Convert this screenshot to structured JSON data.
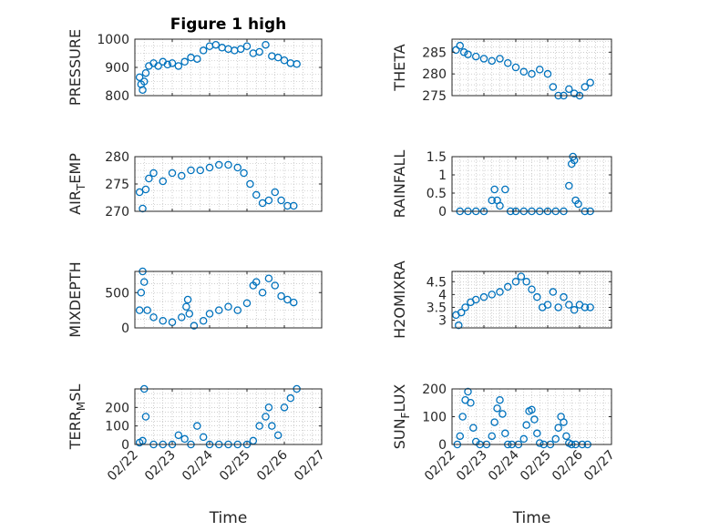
{
  "figure": {
    "background": "#ffffff",
    "marker_color": "#0072bd"
  },
  "chart_data": [
    {
      "type": "scatter",
      "title": "Figure 1 high",
      "ylabel": "PRESSURE",
      "ylabel_sub": "",
      "xlim": [
        "02/22",
        "02/27"
      ],
      "ylim": [
        800,
        1000
      ],
      "yticks": [
        "800",
        "900",
        "1000"
      ],
      "xticks": [],
      "xlabel": "",
      "grid": true,
      "x": [
        "02/22 03:00",
        "02/22 04:00",
        "02/22 05:00",
        "02/22 06:00",
        "02/22 07:00",
        "02/22 09:00",
        "02/22 12:00",
        "02/22 15:00",
        "02/22 18:00",
        "02/22 21:00",
        "02/23 00:00",
        "02/23 04:00",
        "02/23 08:00",
        "02/23 12:00",
        "02/23 16:00",
        "02/23 20:00",
        "02/24 00:00",
        "02/24 04:00",
        "02/24 08:00",
        "02/24 12:00",
        "02/24 16:00",
        "02/24 20:00",
        "02/25 00:00",
        "02/25 04:00",
        "02/25 08:00",
        "02/25 12:00",
        "02/25 16:00",
        "02/25 20:00",
        "02/26 00:00",
        "02/26 04:00",
        "02/26 08:00"
      ],
      "y": [
        865,
        840,
        820,
        850,
        880,
        905,
        915,
        905,
        920,
        910,
        915,
        905,
        920,
        935,
        930,
        960,
        975,
        980,
        970,
        965,
        960,
        965,
        975,
        950,
        955,
        980,
        940,
        935,
        925,
        915,
        912
      ]
    },
    {
      "type": "scatter",
      "title": "",
      "ylabel": "THETA",
      "ylabel_sub": "",
      "xlim": [
        "02/22",
        "02/27"
      ],
      "ylim": [
        275,
        288
      ],
      "yticks": [
        "275",
        "280",
        "285"
      ],
      "xticks": [],
      "xlabel": "",
      "grid": true,
      "x": [
        "02/22 03:00",
        "02/22 06:00",
        "02/22 09:00",
        "02/22 12:00",
        "02/22 18:00",
        "02/23 00:00",
        "02/23 06:00",
        "02/23 12:00",
        "02/23 18:00",
        "02/24 00:00",
        "02/24 06:00",
        "02/24 12:00",
        "02/24 18:00",
        "02/25 00:00",
        "02/25 04:00",
        "02/25 08:00",
        "02/25 12:00",
        "02/25 16:00",
        "02/25 20:00",
        "02/26 00:00",
        "02/26 04:00",
        "02/26 08:00"
      ],
      "y": [
        285.5,
        286.5,
        285.0,
        284.5,
        284.0,
        283.5,
        283.0,
        283.5,
        282.5,
        281.5,
        280.5,
        280.0,
        281.0,
        280.0,
        277.0,
        275.0,
        275.0,
        276.5,
        275.5,
        275.0,
        277.0,
        278.0
      ]
    },
    {
      "type": "scatter",
      "title": "",
      "ylabel": "AIR",
      "ylabel_sub": "T",
      "ylabel_suffix": "EMP",
      "xlim": [
        "02/22",
        "02/27"
      ],
      "ylim": [
        270,
        280
      ],
      "yticks": [
        "270",
        "275",
        "280"
      ],
      "xticks": [],
      "xlabel": "",
      "grid": true,
      "x": [
        "02/22 03:00",
        "02/22 05:00",
        "02/22 07:00",
        "02/22 09:00",
        "02/22 12:00",
        "02/22 18:00",
        "02/23 00:00",
        "02/23 06:00",
        "02/23 12:00",
        "02/23 18:00",
        "02/24 00:00",
        "02/24 06:00",
        "02/24 12:00",
        "02/24 18:00",
        "02/24 22:00",
        "02/25 02:00",
        "02/25 06:00",
        "02/25 10:00",
        "02/25 14:00",
        "02/25 18:00",
        "02/25 22:00",
        "02/26 02:00",
        "02/26 06:00"
      ],
      "y": [
        273.5,
        270.5,
        274.0,
        276.0,
        277.0,
        275.5,
        277.0,
        276.5,
        277.5,
        277.5,
        278.0,
        278.5,
        278.5,
        278.0,
        277.0,
        275.0,
        273.0,
        271.5,
        272.0,
        273.5,
        272.0,
        271.0,
        271.0
      ]
    },
    {
      "type": "scatter",
      "title": "",
      "ylabel": "RAINFALL",
      "ylabel_sub": "",
      "xlim": [
        "02/22",
        "02/27"
      ],
      "ylim": [
        0,
        1.5
      ],
      "yticks": [
        "0",
        "0.5",
        "1",
        "1.5"
      ],
      "xticks": [],
      "xlabel": "",
      "grid": true,
      "x": [
        "02/22 06:00",
        "02/22 12:00",
        "02/22 18:00",
        "02/23 00:00",
        "02/23 06:00",
        "02/23 08:00",
        "02/23 10:00",
        "02/23 12:00",
        "02/23 16:00",
        "02/23 20:00",
        "02/24 00:00",
        "02/24 06:00",
        "02/24 12:00",
        "02/24 18:00",
        "02/25 00:00",
        "02/25 06:00",
        "02/25 12:00",
        "02/25 16:00",
        "02/25 18:00",
        "02/25 19:00",
        "02/25 20:00",
        "02/25 21:00",
        "02/25 23:00",
        "02/26 04:00",
        "02/26 08:00"
      ],
      "y": [
        0,
        0,
        0,
        0,
        0.3,
        0.6,
        0.3,
        0.15,
        0.6,
        0,
        0,
        0,
        0,
        0,
        0,
        0,
        0,
        0.7,
        1.3,
        1.5,
        1.4,
        0.3,
        0.2,
        0,
        0
      ]
    },
    {
      "type": "scatter",
      "title": "",
      "ylabel": "MIXDEPTH",
      "ylabel_sub": "",
      "xlim": [
        "02/22",
        "02/27"
      ],
      "ylim": [
        0,
        800
      ],
      "yticks": [
        "0",
        "500"
      ],
      "xticks": [],
      "xlabel": "",
      "grid": true,
      "x": [
        "02/22 03:00",
        "02/22 04:00",
        "02/22 05:00",
        "02/22 06:00",
        "02/22 08:00",
        "02/22 12:00",
        "02/22 18:00",
        "02/23 00:00",
        "02/23 06:00",
        "02/23 09:00",
        "02/23 10:00",
        "02/23 11:00",
        "02/23 14:00",
        "02/23 20:00",
        "02/24 00:00",
        "02/24 06:00",
        "02/24 12:00",
        "02/24 18:00",
        "02/25 00:00",
        "02/25 04:00",
        "02/25 06:00",
        "02/25 10:00",
        "02/25 14:00",
        "02/25 18:00",
        "02/25 22:00",
        "02/26 02:00",
        "02/26 06:00"
      ],
      "y": [
        250,
        500,
        800,
        650,
        250,
        150,
        100,
        80,
        150,
        300,
        400,
        200,
        30,
        100,
        200,
        250,
        300,
        250,
        350,
        600,
        650,
        500,
        700,
        600,
        450,
        400,
        360
      ]
    },
    {
      "type": "scatter",
      "title": "",
      "ylabel": "H2OMIXRA",
      "ylabel_sub": "",
      "xlim": [
        "02/22",
        "02/27"
      ],
      "ylim": [
        2.7,
        4.9
      ],
      "yticks": [
        "3",
        "3.5",
        "4",
        "4.5"
      ],
      "xticks": [],
      "xlabel": "",
      "grid": true,
      "x": [
        "02/22 03:00",
        "02/22 05:00",
        "02/22 07:00",
        "02/22 10:00",
        "02/22 14:00",
        "02/22 18:00",
        "02/23 00:00",
        "02/23 06:00",
        "02/23 12:00",
        "02/23 18:00",
        "02/24 00:00",
        "02/24 04:00",
        "02/24 08:00",
        "02/24 12:00",
        "02/24 16:00",
        "02/24 20:00",
        "02/25 00:00",
        "02/25 04:00",
        "02/25 08:00",
        "02/25 12:00",
        "02/25 16:00",
        "02/25 20:00",
        "02/26 00:00",
        "02/26 04:00",
        "02/26 08:00"
      ],
      "y": [
        3.2,
        2.8,
        3.3,
        3.5,
        3.7,
        3.8,
        3.9,
        4.0,
        4.1,
        4.3,
        4.5,
        4.7,
        4.5,
        4.2,
        3.9,
        3.5,
        3.6,
        4.1,
        3.5,
        3.9,
        3.6,
        3.4,
        3.6,
        3.5,
        3.5
      ]
    },
    {
      "type": "scatter",
      "title": "",
      "ylabel": "TERR",
      "ylabel_sub": "M",
      "ylabel_suffix": "SL",
      "xlim": [
        "02/22",
        "02/27"
      ],
      "ylim": [
        0,
        300
      ],
      "yticks": [
        "0",
        "100",
        "200"
      ],
      "xticks": [
        "02/22",
        "02/23",
        "02/24",
        "02/25",
        "02/26",
        "02/27"
      ],
      "xlabel": "Time",
      "grid": true,
      "x": [
        "02/22 03:00",
        "02/22 05:00",
        "02/22 06:00",
        "02/22 07:00",
        "02/22 12:00",
        "02/22 18:00",
        "02/23 00:00",
        "02/23 04:00",
        "02/23 08:00",
        "02/23 12:00",
        "02/23 16:00",
        "02/23 20:00",
        "02/24 00:00",
        "02/24 06:00",
        "02/24 12:00",
        "02/24 18:00",
        "02/25 00:00",
        "02/25 04:00",
        "02/25 08:00",
        "02/25 12:00",
        "02/25 14:00",
        "02/25 16:00",
        "02/25 20:00",
        "02/26 00:00",
        "02/26 04:00",
        "02/26 08:00"
      ],
      "y": [
        10,
        20,
        300,
        150,
        0,
        0,
        0,
        50,
        30,
        0,
        100,
        40,
        0,
        0,
        0,
        0,
        0,
        20,
        100,
        150,
        200,
        100,
        50,
        200,
        250,
        300
      ]
    },
    {
      "type": "scatter",
      "title": "",
      "ylabel": "SUN",
      "ylabel_sub": "F",
      "ylabel_suffix": "LUX",
      "xlim": [
        "02/22",
        "02/27"
      ],
      "ylim": [
        0,
        200
      ],
      "yticks": [
        "0",
        "100",
        "200"
      ],
      "xticks": [
        "02/22",
        "02/23",
        "02/24",
        "02/25",
        "02/26",
        "02/27"
      ],
      "xlabel": "Time",
      "grid": true,
      "x": [
        "02/22 04:00",
        "02/22 06:00",
        "02/22 08:00",
        "02/22 10:00",
        "02/22 12:00",
        "02/22 14:00",
        "02/22 16:00",
        "02/22 18:00",
        "02/22 21:00",
        "02/23 02:00",
        "02/23 06:00",
        "02/23 08:00",
        "02/23 10:00",
        "02/23 12:00",
        "02/23 14:00",
        "02/23 16:00",
        "02/23 18:00",
        "02/23 21:00",
        "02/24 02:00",
        "02/24 06:00",
        "02/24 08:00",
        "02/24 10:00",
        "02/24 12:00",
        "02/24 14:00",
        "02/24 16:00",
        "02/24 18:00",
        "02/24 21:00",
        "02/25 02:00",
        "02/25 06:00",
        "02/25 08:00",
        "02/25 10:00",
        "02/25 12:00",
        "02/25 14:00",
        "02/25 16:00",
        "02/25 18:00",
        "02/25 21:00",
        "02/26 02:00",
        "02/26 06:00"
      ],
      "y": [
        0,
        30,
        100,
        160,
        190,
        150,
        60,
        10,
        0,
        0,
        30,
        80,
        130,
        160,
        110,
        40,
        0,
        0,
        0,
        20,
        70,
        120,
        125,
        90,
        40,
        5,
        0,
        0,
        20,
        60,
        100,
        80,
        30,
        5,
        0,
        0,
        0,
        0
      ]
    }
  ]
}
